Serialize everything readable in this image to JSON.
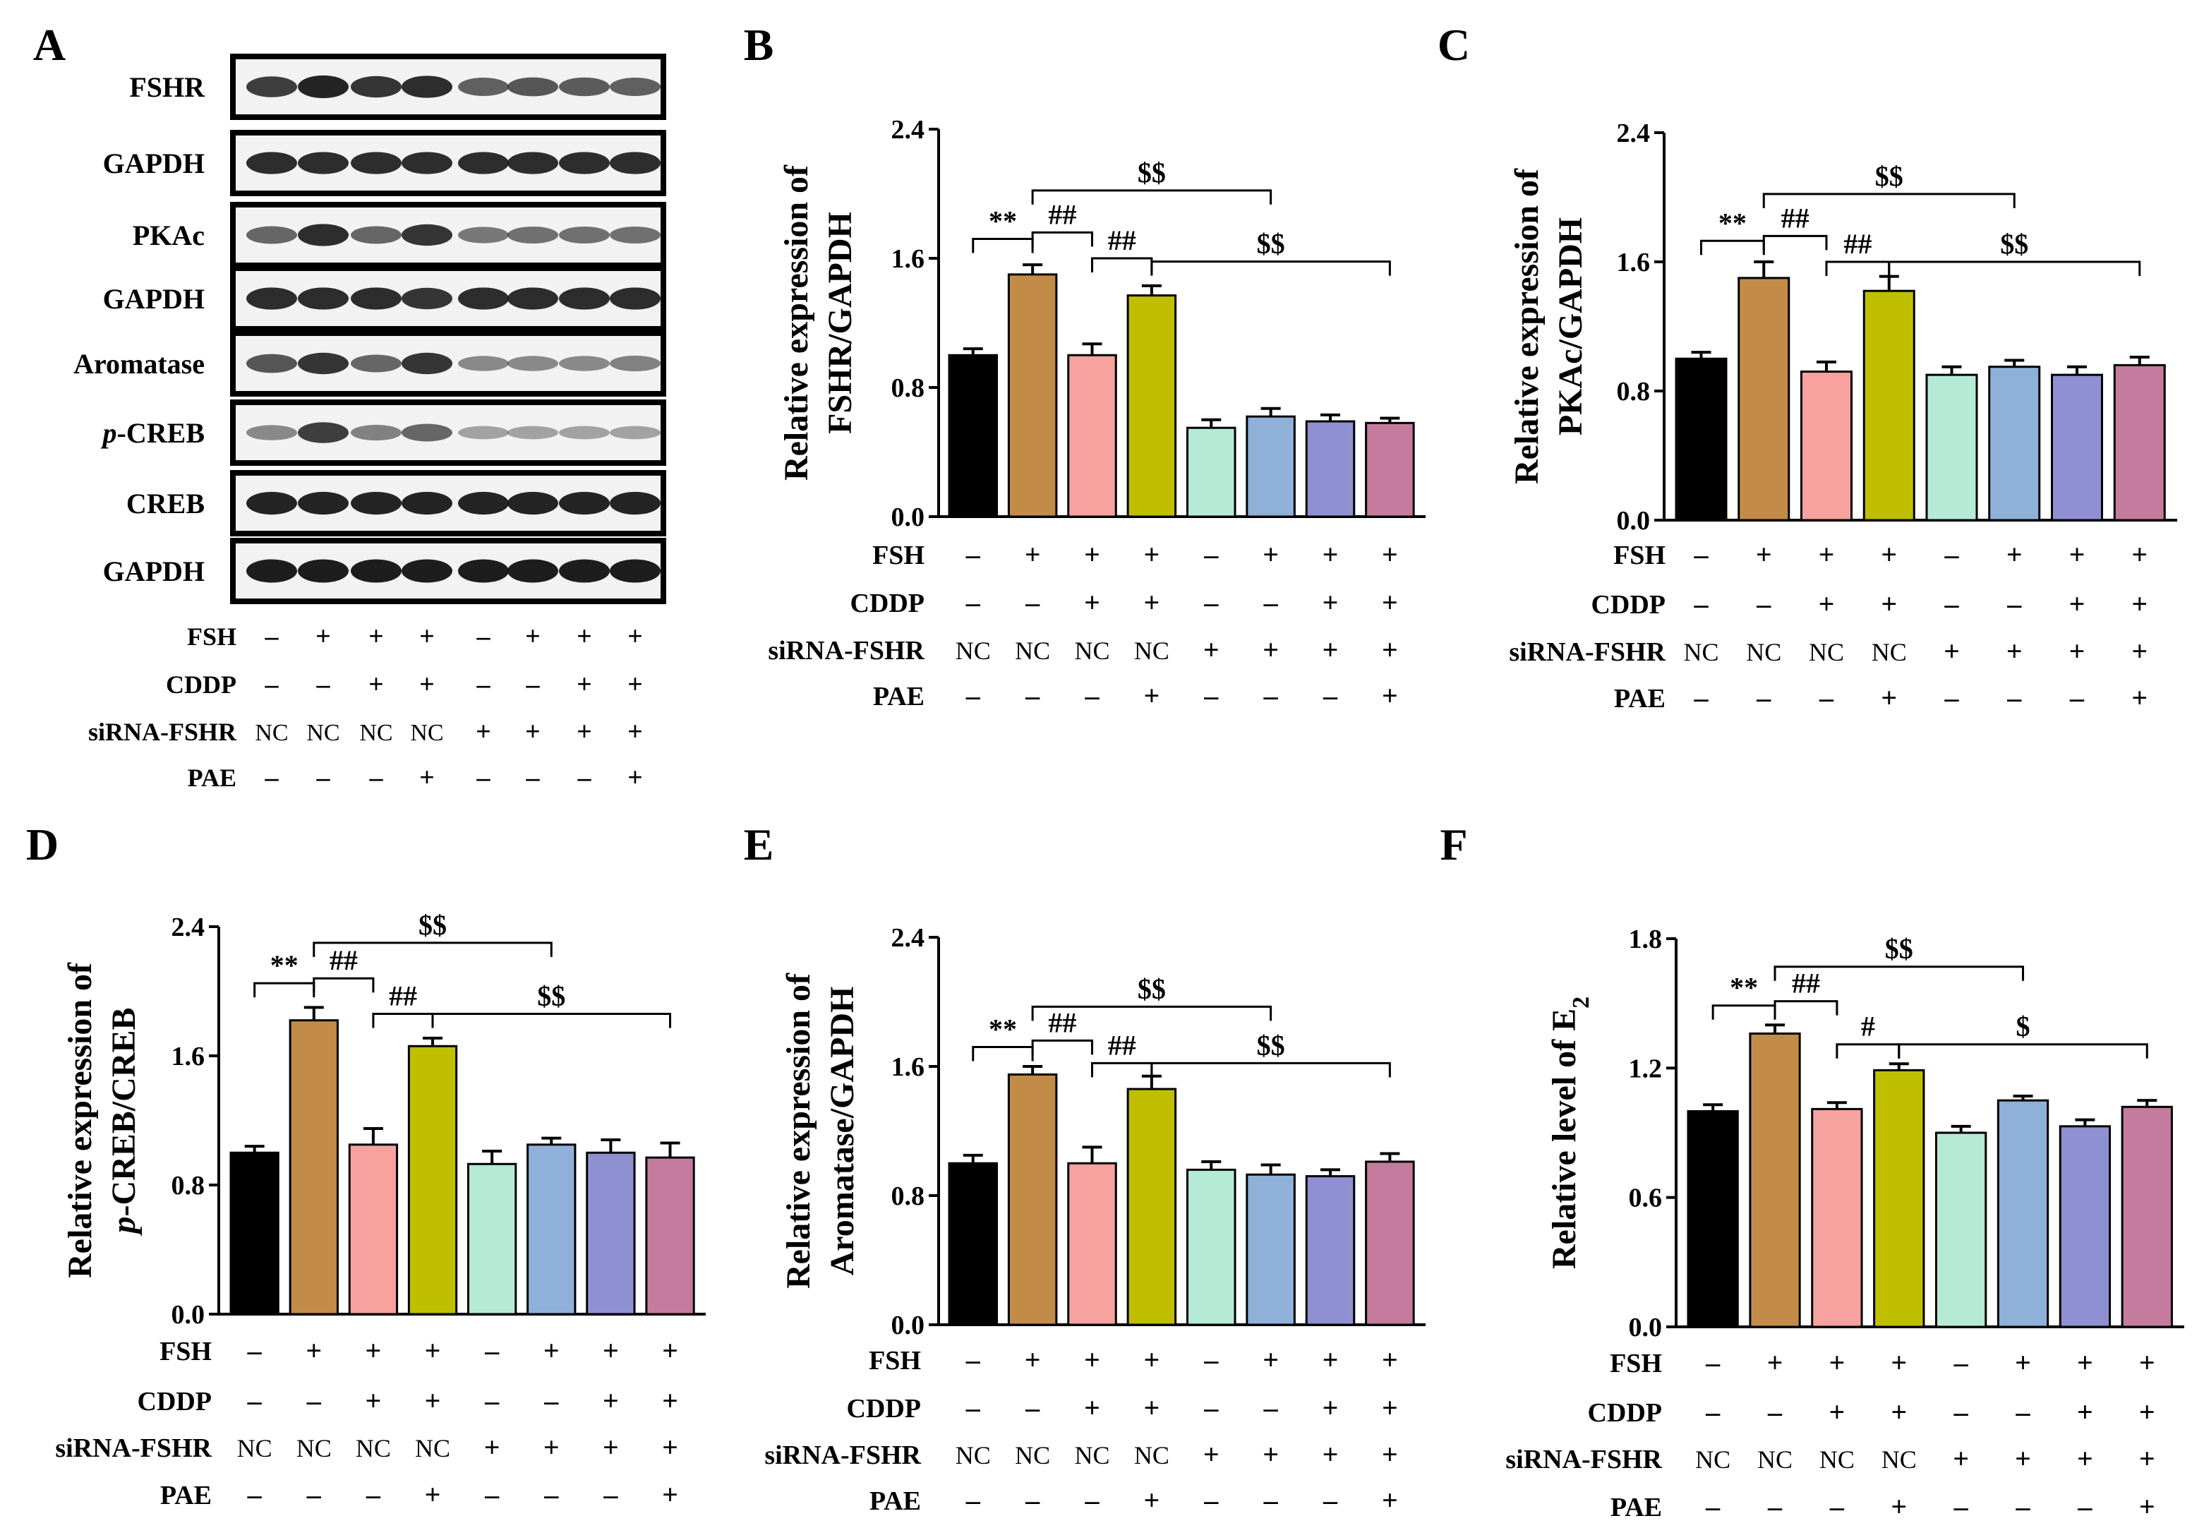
{
  "conditions": {
    "row_labels": [
      "FSH",
      "CDDP",
      "siRNA-FSHR",
      "PAE"
    ],
    "rows": [
      [
        "–",
        "+",
        "+",
        "+",
        "–",
        "+",
        "+",
        "+"
      ],
      [
        "–",
        "–",
        "+",
        "+",
        "–",
        "–",
        "+",
        "+"
      ],
      [
        "NC",
        "NC",
        "NC",
        "NC",
        "+",
        "+",
        "+",
        "+"
      ],
      [
        "–",
        "–",
        "–",
        "+",
        "–",
        "–",
        "–",
        "+"
      ]
    ]
  },
  "bar_colors": [
    "#000000",
    "#c28b47",
    "#f7a29e",
    "#bfbf00",
    "#b5ead6",
    "#8fb1d9",
    "#8e90d2",
    "#c47b9e"
  ],
  "western_blot": {
    "letter": "A",
    "bands": [
      {
        "label": "FSHR",
        "italic_prefix": "",
        "intensities": [
          0.75,
          0.9,
          0.8,
          0.85,
          0.55,
          0.6,
          0.58,
          0.55
        ]
      },
      {
        "label": "GAPDH",
        "italic_prefix": "",
        "intensities": [
          0.85,
          0.85,
          0.85,
          0.85,
          0.85,
          0.85,
          0.85,
          0.85
        ]
      },
      {
        "label": "PKAc",
        "italic_prefix": "",
        "intensities": [
          0.5,
          0.85,
          0.5,
          0.8,
          0.4,
          0.45,
          0.45,
          0.45
        ]
      },
      {
        "label": "GAPDH",
        "italic_prefix": "",
        "intensities": [
          0.85,
          0.85,
          0.85,
          0.8,
          0.85,
          0.85,
          0.85,
          0.85
        ]
      },
      {
        "label": "Aromatase",
        "italic_prefix": "",
        "intensities": [
          0.6,
          0.8,
          0.5,
          0.8,
          0.3,
          0.3,
          0.3,
          0.35
        ]
      },
      {
        "label": "-CREB",
        "italic_prefix": "p",
        "intensities": [
          0.3,
          0.75,
          0.35,
          0.5,
          0.15,
          0.15,
          0.15,
          0.15
        ]
      },
      {
        "label": "CREB",
        "italic_prefix": "",
        "intensities": [
          0.9,
          0.9,
          0.9,
          0.9,
          0.9,
          0.9,
          0.9,
          0.9
        ]
      },
      {
        "label": "GAPDH",
        "italic_prefix": "",
        "intensities": [
          0.95,
          0.95,
          0.95,
          0.95,
          0.95,
          0.95,
          0.95,
          0.95
        ]
      }
    ]
  },
  "chart_data": [
    {
      "letter": "B",
      "type": "bar",
      "ylabel_lines": [
        [
          {
            "t": "Relative expression of"
          }
        ],
        [
          {
            "t": "FSHR/GAPDH"
          }
        ]
      ],
      "ylim": [
        0,
        2.4
      ],
      "ticks": [
        "0.0",
        "0.8",
        "1.6",
        "2.4"
      ],
      "values": [
        1.0,
        1.5,
        1.0,
        1.37,
        0.55,
        0.62,
        0.59,
        0.58
      ],
      "errors": [
        0.04,
        0.06,
        0.07,
        0.06,
        0.05,
        0.05,
        0.04,
        0.03
      ],
      "brackets": [
        {
          "from": 0,
          "to": 1,
          "level": 1.72,
          "label": "**"
        },
        {
          "from": 1,
          "to": 2,
          "level": 1.76,
          "label": "##"
        },
        {
          "from": 2,
          "to": 3,
          "level": 1.6,
          "label": "##"
        },
        {
          "from": 1,
          "to": 5,
          "level": 2.02,
          "label": "$$"
        },
        {
          "from": 3,
          "to": 7,
          "level": 1.58,
          "label": "$$"
        }
      ]
    },
    {
      "letter": "C",
      "type": "bar",
      "ylabel_lines": [
        [
          {
            "t": "Relative expression of"
          }
        ],
        [
          {
            "t": "PKAc/GAPDH"
          }
        ]
      ],
      "ylim": [
        0,
        2.4
      ],
      "ticks": [
        "0.0",
        "0.8",
        "1.6",
        "2.4"
      ],
      "values": [
        1.0,
        1.5,
        0.92,
        1.42,
        0.9,
        0.95,
        0.9,
        0.96
      ],
      "errors": [
        0.04,
        0.1,
        0.06,
        0.09,
        0.05,
        0.04,
        0.05,
        0.05
      ],
      "brackets": [
        {
          "from": 0,
          "to": 1,
          "level": 1.73,
          "label": "**"
        },
        {
          "from": 1,
          "to": 2,
          "level": 1.76,
          "label": "##"
        },
        {
          "from": 2,
          "to": 3,
          "level": 1.6,
          "label": "##"
        },
        {
          "from": 1,
          "to": 5,
          "level": 2.02,
          "label": "$$"
        },
        {
          "from": 3,
          "to": 7,
          "level": 1.6,
          "label": "$$"
        }
      ]
    },
    {
      "letter": "D",
      "type": "bar",
      "ylabel_lines": [
        [
          {
            "t": "Relative expression of"
          }
        ],
        [
          {
            "t": "p",
            "i": true
          },
          {
            "t": "-CREB/CREB"
          }
        ]
      ],
      "ylim": [
        0,
        2.4
      ],
      "ticks": [
        "0.0",
        "0.8",
        "1.6",
        "2.4"
      ],
      "values": [
        1.0,
        1.82,
        1.05,
        1.66,
        0.93,
        1.05,
        1.0,
        0.97
      ],
      "errors": [
        0.04,
        0.08,
        0.1,
        0.05,
        0.08,
        0.04,
        0.08,
        0.09
      ],
      "brackets": [
        {
          "from": 0,
          "to": 1,
          "level": 2.05,
          "label": "**"
        },
        {
          "from": 1,
          "to": 2,
          "level": 2.08,
          "label": "##"
        },
        {
          "from": 2,
          "to": 3,
          "level": 1.86,
          "label": "##"
        },
        {
          "from": 1,
          "to": 5,
          "level": 2.3,
          "label": "$$"
        },
        {
          "from": 3,
          "to": 7,
          "level": 1.86,
          "label": "$$"
        }
      ]
    },
    {
      "letter": "E",
      "type": "bar",
      "ylabel_lines": [
        [
          {
            "t": "Relative expression of"
          }
        ],
        [
          {
            "t": "Aromatase/GAPDH"
          }
        ]
      ],
      "ylim": [
        0,
        2.4
      ],
      "ticks": [
        "0.0",
        "0.8",
        "1.6",
        "2.4"
      ],
      "values": [
        1.0,
        1.55,
        1.0,
        1.46,
        0.96,
        0.93,
        0.92,
        1.01
      ],
      "errors": [
        0.05,
        0.05,
        0.1,
        0.08,
        0.05,
        0.06,
        0.04,
        0.05
      ],
      "brackets": [
        {
          "from": 0,
          "to": 1,
          "level": 1.72,
          "label": "**"
        },
        {
          "from": 1,
          "to": 2,
          "level": 1.76,
          "label": "##"
        },
        {
          "from": 2,
          "to": 3,
          "level": 1.62,
          "label": "##"
        },
        {
          "from": 1,
          "to": 5,
          "level": 1.97,
          "label": "$$"
        },
        {
          "from": 3,
          "to": 7,
          "level": 1.62,
          "label": "$$"
        }
      ]
    },
    {
      "letter": "F",
      "type": "bar",
      "ylabel_lines": [
        [
          {
            "t": "Relative level of E"
          },
          {
            "t": "2",
            "sub": true
          }
        ]
      ],
      "ylim": [
        0,
        1.8
      ],
      "ticks": [
        "0.0",
        "0.6",
        "1.2",
        "1.8"
      ],
      "values": [
        1.0,
        1.36,
        1.01,
        1.19,
        0.9,
        1.05,
        0.93,
        1.02
      ],
      "errors": [
        0.03,
        0.04,
        0.03,
        0.03,
        0.03,
        0.02,
        0.03,
        0.03
      ],
      "brackets": [
        {
          "from": 0,
          "to": 1,
          "level": 1.49,
          "label": "**"
        },
        {
          "from": 1,
          "to": 2,
          "level": 1.51,
          "label": "##"
        },
        {
          "from": 2,
          "to": 3,
          "level": 1.31,
          "label": "#"
        },
        {
          "from": 1,
          "to": 5,
          "level": 1.67,
          "label": "$$"
        },
        {
          "from": 3,
          "to": 7,
          "level": 1.31,
          "label": "$"
        }
      ]
    }
  ]
}
